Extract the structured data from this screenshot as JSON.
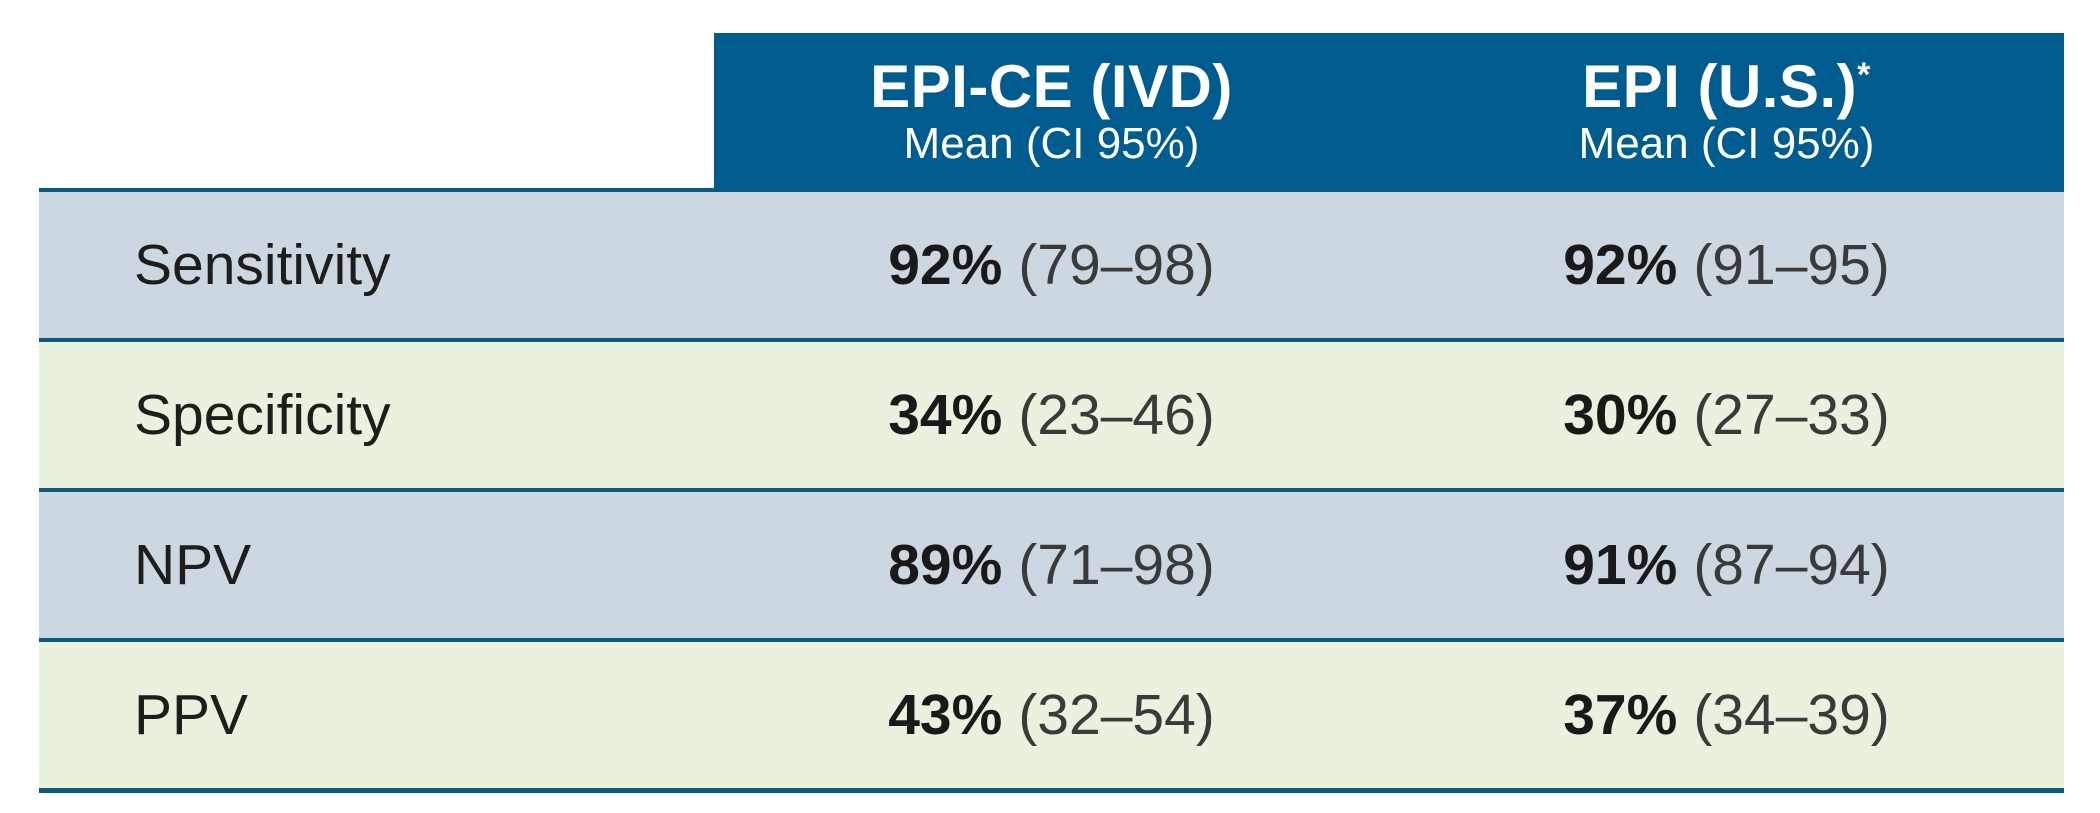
{
  "colors": {
    "header_bg": "#005b8e",
    "row_blue": "#cdd7e2",
    "row_green": "#e9f2de",
    "separator_line": "#0e5a7f",
    "header_text": "#ffffff",
    "body_text": "#1d1d1b",
    "ci_text": "#3a3a3a"
  },
  "header": {
    "columns": [
      {
        "title": "EPI-CE (IVD)",
        "asterisk": "",
        "subtitle": "Mean (CI 95%)"
      },
      {
        "title": "EPI (U.S.)",
        "asterisk": "*",
        "subtitle": "Mean (CI 95%)"
      }
    ]
  },
  "rows": [
    {
      "label": "Sensitivity",
      "values": [
        {
          "mean": "92%",
          "ci": "(79–98)"
        },
        {
          "mean": "92%",
          "ci": "(91–95)"
        }
      ]
    },
    {
      "label": "Specificity",
      "values": [
        {
          "mean": "34%",
          "ci": "(23–46)"
        },
        {
          "mean": "30%",
          "ci": "(27–33)"
        }
      ]
    },
    {
      "label": "NPV",
      "values": [
        {
          "mean": "89%",
          "ci": "(71–98)"
        },
        {
          "mean": "91%",
          "ci": "(87–94)"
        }
      ]
    },
    {
      "label": "PPV",
      "values": [
        {
          "mean": "43%",
          "ci": "(32–54)"
        },
        {
          "mean": "37%",
          "ci": "(34–39)"
        }
      ]
    }
  ],
  "chart_data": {
    "type": "table",
    "title": "",
    "columns": [
      "",
      "EPI-CE (IVD) — Mean (CI 95%)",
      "EPI (U.S.)* — Mean (CI 95%)"
    ],
    "rows": [
      [
        "Sensitivity",
        "92% (79–98)",
        "92% (91–95)"
      ],
      [
        "Specificity",
        "34% (23–46)",
        "30% (27–33)"
      ],
      [
        "NPV",
        "89% (71–98)",
        "91% (87–94)"
      ],
      [
        "PPV",
        "43% (32–54)",
        "37% (34–39)"
      ]
    ],
    "numeric": {
      "metrics": [
        "Sensitivity",
        "Specificity",
        "NPV",
        "PPV"
      ],
      "series": [
        {
          "name": "EPI-CE (IVD)",
          "mean_pct": [
            92,
            34,
            89,
            43
          ],
          "ci_low": [
            79,
            23,
            71,
            32
          ],
          "ci_high": [
            98,
            46,
            98,
            54
          ]
        },
        {
          "name": "EPI (U.S.)",
          "mean_pct": [
            92,
            30,
            91,
            37
          ],
          "ci_low": [
            91,
            27,
            87,
            34
          ],
          "ci_high": [
            95,
            33,
            94,
            39
          ]
        }
      ]
    }
  }
}
